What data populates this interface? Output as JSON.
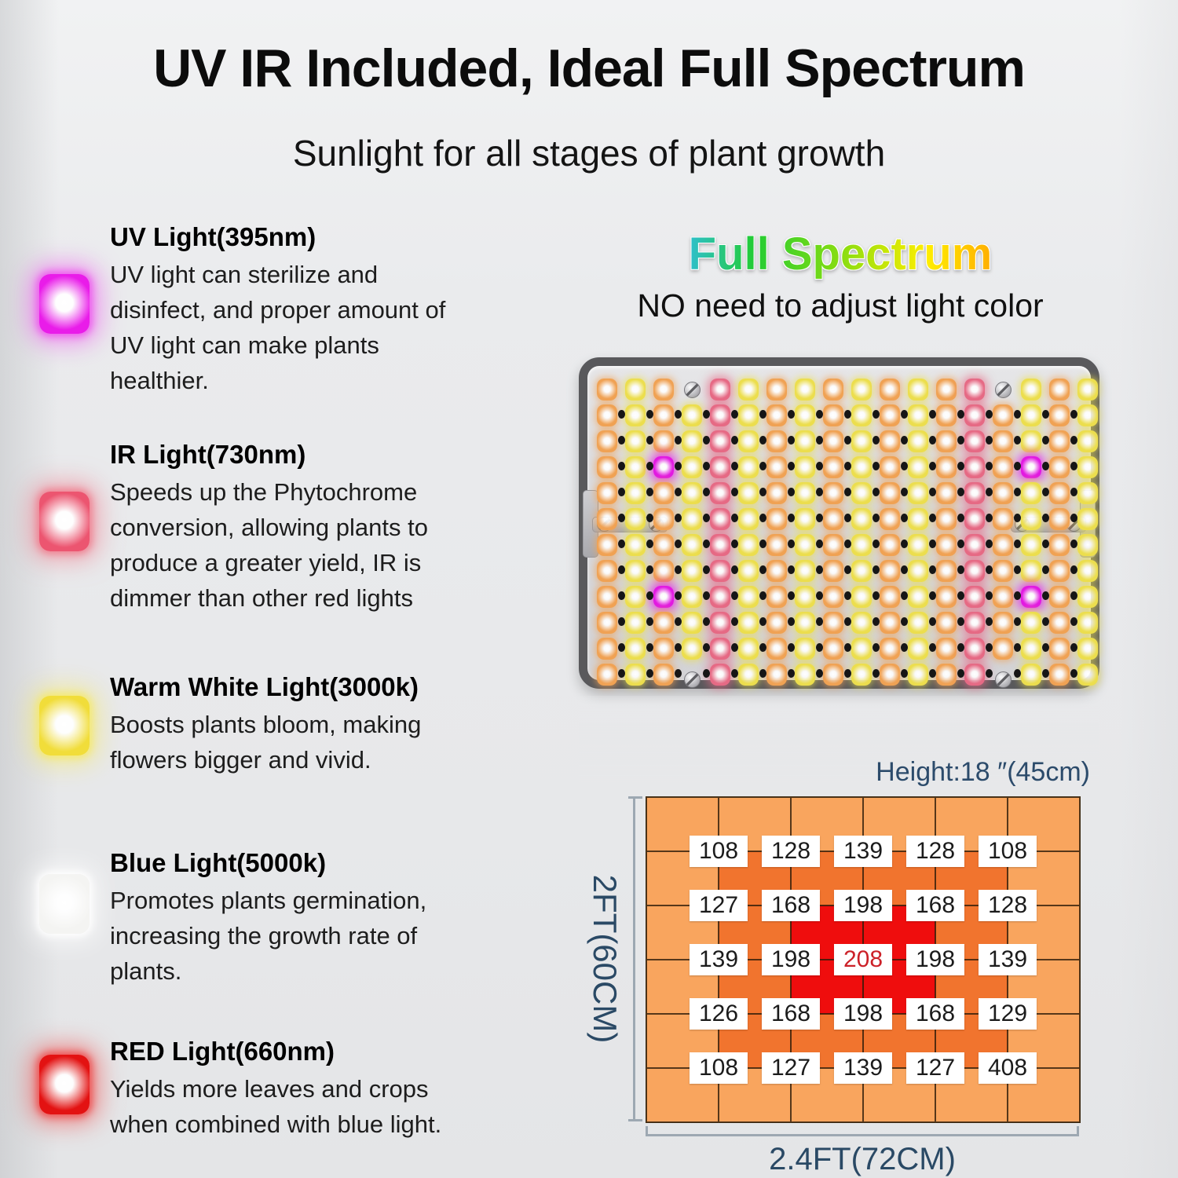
{
  "header": {
    "title": "UV IR Included, Ideal Full Spectrum",
    "subtitle": "Sunlight for all stages of plant growth"
  },
  "light_types": [
    {
      "name": "UV Light(395nm)",
      "description": "UV light can sterilize and disinfect, and proper amount of UV light can make plants healthier.",
      "color": "#e91ce9",
      "glow": "#ee55ee"
    },
    {
      "name": "IR Light(730nm)",
      "description": "Speeds up the Phytochrome conversion, allowing plants to produce a greater yield, IR is dimmer than other red lights",
      "color": "#ec5570",
      "glow": "#f07f8f"
    },
    {
      "name": "Warm White Light(3000k)",
      "description": "Boosts plants bloom, making flowers bigger and vivid.",
      "color": "#f1dd3a",
      "glow": "#f5e96e"
    },
    {
      "name": "Blue Light(5000k)",
      "description": "Promotes plants germination, increasing the growth rate of plants.",
      "color": "#f4f4f2",
      "glow": "#ffffff"
    },
    {
      "name": "RED Light(660nm)",
      "description": "Yields more leaves and crops when combined with blue light.",
      "color": "#e31212",
      "glow": "#ef4d4d"
    }
  ],
  "spectrum": {
    "headline": "Full Spectrum",
    "subheadline": "NO need to adjust light color",
    "gradient": [
      "#2255ee",
      "#33bbff",
      "#22cc33",
      "#88dd11",
      "#ffee00",
      "#ff9900",
      "#ff2200"
    ]
  },
  "panel": {
    "cols": 18,
    "rows": 12,
    "column_pattern": "OYOYPYOYOYOYOPOYOY",
    "magenta_overrides": [
      [
        4,
        3
      ],
      [
        4,
        16
      ],
      [
        9,
        3
      ],
      [
        9,
        16
      ]
    ],
    "screw_positions": [
      [
        1,
        4
      ],
      [
        1,
        15
      ],
      [
        12,
        4
      ],
      [
        12,
        15
      ]
    ],
    "led_palette": {
      "O": "#f0a254",
      "Y": "#ecde4e",
      "P": "#e66a85",
      "M": "#e218e2"
    }
  },
  "ppfd": {
    "annotation": "Height:18 ″(45cm)",
    "xlabel": "2.4FT(72CM)",
    "ylabel": "2FT(60CM)",
    "chart_data": {
      "type": "heatmap",
      "grid_cols": 6,
      "grid_rows": 6,
      "values": [
        [
          108,
          128,
          139,
          128,
          108
        ],
        [
          127,
          168,
          198,
          168,
          128
        ],
        [
          139,
          198,
          208,
          198,
          139
        ],
        [
          126,
          168,
          198,
          168,
          129
        ],
        [
          108,
          127,
          139,
          127,
          408
        ]
      ],
      "highlight": {
        "row": 3,
        "col": 3,
        "value": 208,
        "color": "#cc2128"
      },
      "zone_colors": {
        "outer": "#f9a55e",
        "mid": "#f1742e",
        "center": "#ef0d0d"
      }
    }
  }
}
